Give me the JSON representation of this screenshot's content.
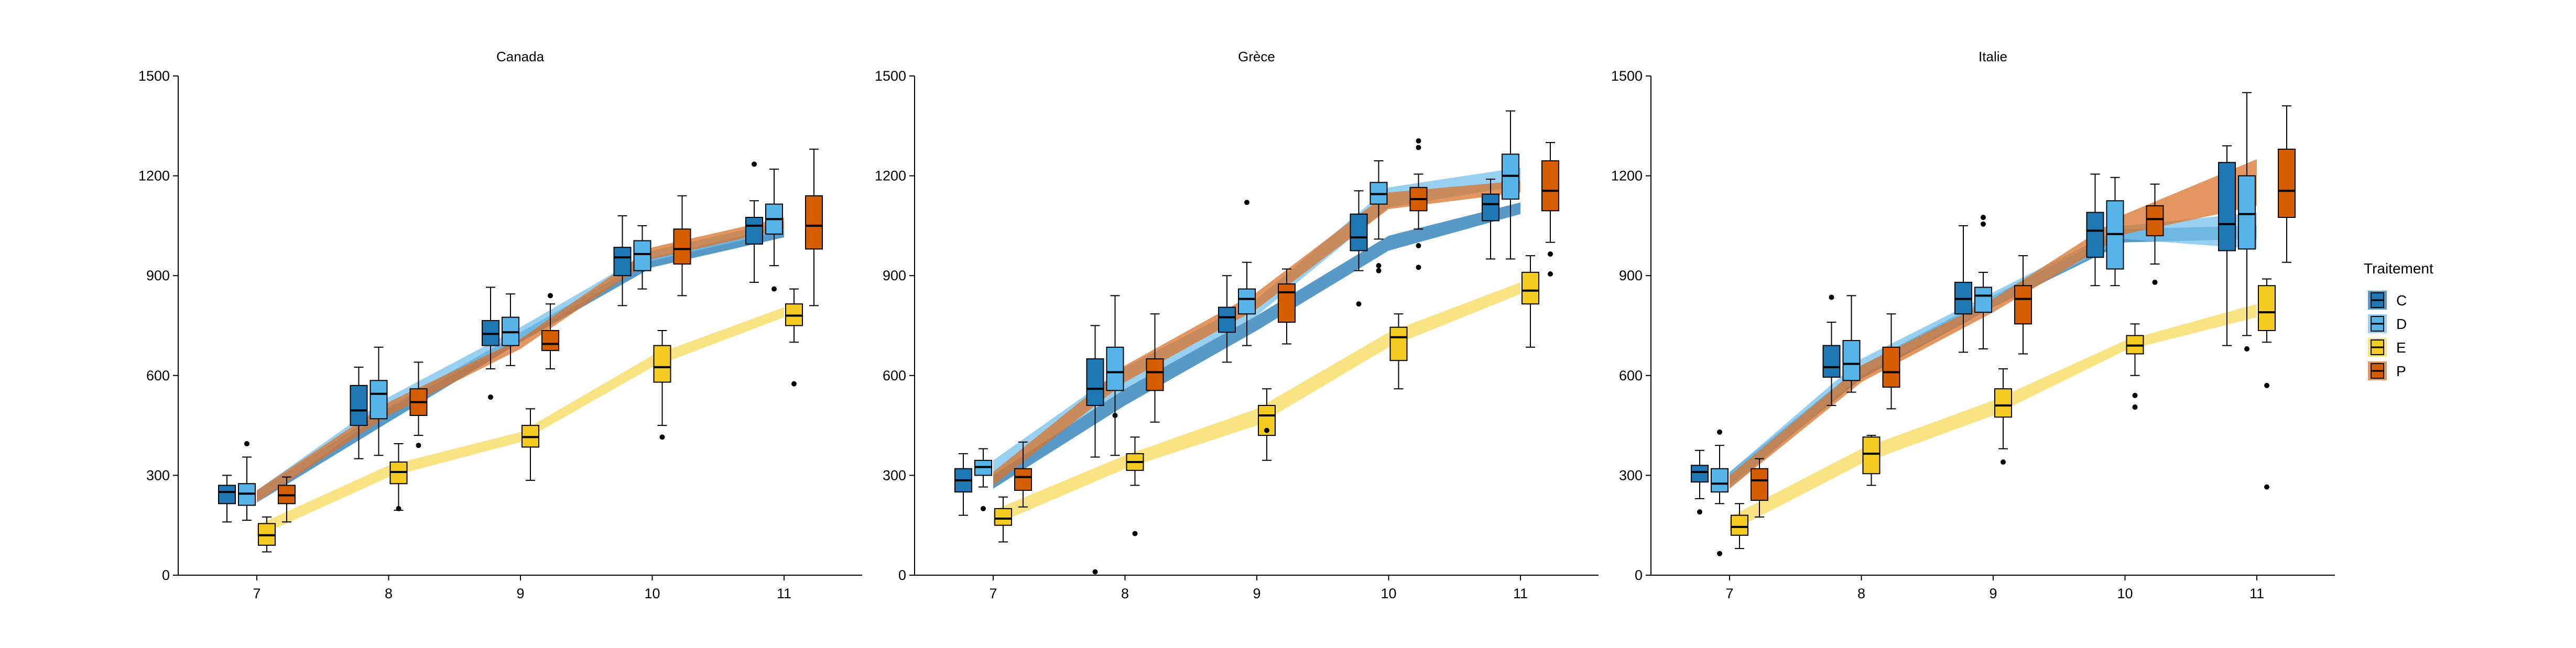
{
  "chart_data": {
    "type": "box",
    "panels": [
      "Canada",
      "Grèce",
      "Italie"
    ],
    "categories": [
      7,
      8,
      9,
      10,
      11
    ],
    "ylim": [
      0,
      1500
    ],
    "yticks": [
      0,
      300,
      600,
      900,
      1200,
      1500
    ],
    "grid": false,
    "legend": {
      "title": "Traitement",
      "placement": "right",
      "entries": [
        "C",
        "D",
        "E",
        "P"
      ]
    },
    "series_colors": {
      "C": {
        "fill": "#1F78B4",
        "ribbon": "#1F78B4"
      },
      "D": {
        "fill": "#56B4E9",
        "ribbon": "#74C0EC"
      },
      "E": {
        "fill": "#F5CB22",
        "ribbon": "#F7D95A"
      },
      "P": {
        "fill": "#D55E00",
        "ribbon": "#D9732A"
      }
    },
    "series_order": [
      "C",
      "D",
      "E",
      "P"
    ],
    "data": {
      "Canada": {
        "C": [
          {
            "x": 7,
            "min": 160,
            "q1": 215,
            "median": 250,
            "q3": 270,
            "max": 300,
            "outliers": []
          },
          {
            "x": 8,
            "min": 350,
            "q1": 450,
            "median": 495,
            "q3": 570,
            "max": 625,
            "outliers": []
          },
          {
            "x": 9,
            "min": 620,
            "q1": 690,
            "median": 725,
            "q3": 765,
            "max": 865,
            "outliers": [
              535
            ]
          },
          {
            "x": 10,
            "min": 810,
            "q1": 900,
            "median": 955,
            "q3": 985,
            "max": 1080,
            "outliers": []
          },
          {
            "x": 11,
            "min": 880,
            "q1": 995,
            "median": 1050,
            "q3": 1075,
            "max": 1125,
            "outliers": [
              1235
            ]
          }
        ],
        "D": [
          {
            "x": 7,
            "min": 165,
            "q1": 210,
            "median": 245,
            "q3": 275,
            "max": 355,
            "outliers": [
              395
            ]
          },
          {
            "x": 8,
            "min": 360,
            "q1": 470,
            "median": 545,
            "q3": 585,
            "max": 685,
            "outliers": []
          },
          {
            "x": 9,
            "min": 630,
            "q1": 690,
            "median": 730,
            "q3": 775,
            "max": 845,
            "outliers": []
          },
          {
            "x": 10,
            "min": 860,
            "q1": 915,
            "median": 965,
            "q3": 1005,
            "max": 1050,
            "outliers": []
          },
          {
            "x": 11,
            "min": 930,
            "q1": 1025,
            "median": 1070,
            "q3": 1115,
            "max": 1220,
            "outliers": [
              860
            ]
          }
        ],
        "E": [
          {
            "x": 7,
            "min": 70,
            "q1": 90,
            "median": 120,
            "q3": 155,
            "max": 175,
            "outliers": []
          },
          {
            "x": 8,
            "min": 195,
            "q1": 275,
            "median": 310,
            "q3": 340,
            "max": 395,
            "outliers": [
              200
            ]
          },
          {
            "x": 9,
            "min": 285,
            "q1": 385,
            "median": 415,
            "q3": 450,
            "max": 500,
            "outliers": []
          },
          {
            "x": 10,
            "min": 450,
            "q1": 580,
            "median": 625,
            "q3": 690,
            "max": 735,
            "outliers": [
              415
            ]
          },
          {
            "x": 11,
            "min": 700,
            "q1": 750,
            "median": 780,
            "q3": 815,
            "max": 860,
            "outliers": [
              575
            ]
          }
        ],
        "P": [
          {
            "x": 7,
            "min": 160,
            "q1": 215,
            "median": 240,
            "q3": 270,
            "max": 295,
            "outliers": []
          },
          {
            "x": 8,
            "min": 420,
            "q1": 480,
            "median": 520,
            "q3": 560,
            "max": 640,
            "outliers": [
              390
            ]
          },
          {
            "x": 9,
            "min": 620,
            "q1": 675,
            "median": 695,
            "q3": 735,
            "max": 815,
            "outliers": [
              840
            ]
          },
          {
            "x": 10,
            "min": 840,
            "q1": 935,
            "median": 980,
            "q3": 1040,
            "max": 1140,
            "outliers": []
          },
          {
            "x": 11,
            "min": 810,
            "q1": 980,
            "median": 1050,
            "q3": 1140,
            "max": 1280,
            "outliers": []
          }
        ]
      },
      "Grèce": {
        "C": [
          {
            "x": 7,
            "min": 180,
            "q1": 250,
            "median": 285,
            "q3": 320,
            "max": 365,
            "outliers": []
          },
          {
            "x": 8,
            "min": 355,
            "q1": 510,
            "median": 560,
            "q3": 650,
            "max": 750,
            "outliers": [
              10
            ]
          },
          {
            "x": 9,
            "min": 640,
            "q1": 730,
            "median": 775,
            "q3": 805,
            "max": 900,
            "outliers": []
          },
          {
            "x": 10,
            "min": 915,
            "q1": 975,
            "median": 1015,
            "q3": 1085,
            "max": 1155,
            "outliers": [
              815
            ]
          },
          {
            "x": 11,
            "min": 950,
            "q1": 1065,
            "median": 1115,
            "q3": 1145,
            "max": 1190,
            "outliers": []
          }
        ],
        "D": [
          {
            "x": 7,
            "min": 265,
            "q1": 300,
            "median": 325,
            "q3": 345,
            "max": 380,
            "outliers": [
              200
            ]
          },
          {
            "x": 8,
            "min": 360,
            "q1": 555,
            "median": 610,
            "q3": 685,
            "max": 840,
            "outliers": [
              480
            ]
          },
          {
            "x": 9,
            "min": 690,
            "q1": 785,
            "median": 830,
            "q3": 860,
            "max": 940,
            "outliers": [
              1120
            ]
          },
          {
            "x": 10,
            "min": 1010,
            "q1": 1115,
            "median": 1145,
            "q3": 1180,
            "max": 1245,
            "outliers": [
              930,
              915
            ]
          },
          {
            "x": 11,
            "min": 950,
            "q1": 1130,
            "median": 1200,
            "q3": 1265,
            "max": 1395,
            "outliers": []
          }
        ],
        "E": [
          {
            "x": 7,
            "min": 100,
            "q1": 150,
            "median": 170,
            "q3": 200,
            "max": 235,
            "outliers": []
          },
          {
            "x": 8,
            "min": 270,
            "q1": 315,
            "median": 340,
            "q3": 365,
            "max": 415,
            "outliers": [
              125
            ]
          },
          {
            "x": 9,
            "min": 345,
            "q1": 420,
            "median": 480,
            "q3": 510,
            "max": 560,
            "outliers": [
              435
            ]
          },
          {
            "x": 10,
            "min": 560,
            "q1": 645,
            "median": 715,
            "q3": 745,
            "max": 785,
            "outliers": []
          },
          {
            "x": 11,
            "min": 685,
            "q1": 815,
            "median": 855,
            "q3": 910,
            "max": 960,
            "outliers": []
          }
        ],
        "P": [
          {
            "x": 7,
            "min": 205,
            "q1": 255,
            "median": 295,
            "q3": 320,
            "max": 400,
            "outliers": []
          },
          {
            "x": 8,
            "min": 460,
            "q1": 555,
            "median": 610,
            "q3": 650,
            "max": 785,
            "outliers": []
          },
          {
            "x": 9,
            "min": 695,
            "q1": 760,
            "median": 850,
            "q3": 875,
            "max": 920,
            "outliers": []
          },
          {
            "x": 10,
            "min": 1040,
            "q1": 1095,
            "median": 1130,
            "q3": 1165,
            "max": 1205,
            "outliers": [
              1305,
              1285,
              990,
              925
            ]
          },
          {
            "x": 11,
            "min": 1000,
            "q1": 1095,
            "median": 1155,
            "q3": 1245,
            "max": 1300,
            "outliers": [
              965,
              905
            ]
          }
        ]
      },
      "Italie": {
        "C": [
          {
            "x": 7,
            "min": 230,
            "q1": 280,
            "median": 310,
            "q3": 330,
            "max": 375,
            "outliers": [
              190
            ]
          },
          {
            "x": 8,
            "min": 510,
            "q1": 595,
            "median": 625,
            "q3": 690,
            "max": 760,
            "outliers": [
              835
            ]
          },
          {
            "x": 9,
            "min": 670,
            "q1": 785,
            "median": 830,
            "q3": 880,
            "max": 1050,
            "outliers": []
          },
          {
            "x": 10,
            "min": 870,
            "q1": 955,
            "median": 1035,
            "q3": 1090,
            "max": 1205,
            "outliers": []
          },
          {
            "x": 11,
            "min": 690,
            "q1": 975,
            "median": 1055,
            "q3": 1240,
            "max": 1290,
            "outliers": []
          }
        ],
        "D": [
          {
            "x": 7,
            "min": 215,
            "q1": 250,
            "median": 275,
            "q3": 320,
            "max": 390,
            "outliers": [
              430,
              65
            ]
          },
          {
            "x": 8,
            "min": 550,
            "q1": 585,
            "median": 635,
            "q3": 705,
            "max": 840,
            "outliers": []
          },
          {
            "x": 9,
            "min": 680,
            "q1": 790,
            "median": 840,
            "q3": 865,
            "max": 910,
            "outliers": [
              1075,
              1055
            ]
          },
          {
            "x": 10,
            "min": 870,
            "q1": 920,
            "median": 1025,
            "q3": 1125,
            "max": 1195,
            "outliers": []
          },
          {
            "x": 11,
            "min": 720,
            "q1": 980,
            "median": 1085,
            "q3": 1200,
            "max": 1450,
            "outliers": [
              680
            ]
          }
        ],
        "E": [
          {
            "x": 7,
            "min": 80,
            "q1": 120,
            "median": 145,
            "q3": 180,
            "max": 215,
            "outliers": []
          },
          {
            "x": 8,
            "min": 270,
            "q1": 305,
            "median": 365,
            "q3": 415,
            "max": 420,
            "outliers": []
          },
          {
            "x": 9,
            "min": 380,
            "q1": 475,
            "median": 510,
            "q3": 560,
            "max": 620,
            "outliers": [
              340
            ]
          },
          {
            "x": 10,
            "min": 600,
            "q1": 665,
            "median": 690,
            "q3": 720,
            "max": 755,
            "outliers": [
              540,
              505
            ]
          },
          {
            "x": 11,
            "min": 700,
            "q1": 735,
            "median": 790,
            "q3": 870,
            "max": 890,
            "outliers": [
              570,
              265
            ]
          }
        ],
        "P": [
          {
            "x": 7,
            "min": 175,
            "q1": 225,
            "median": 285,
            "q3": 320,
            "max": 350,
            "outliers": []
          },
          {
            "x": 8,
            "min": 500,
            "q1": 565,
            "median": 610,
            "q3": 685,
            "max": 785,
            "outliers": []
          },
          {
            "x": 9,
            "min": 665,
            "q1": 755,
            "median": 830,
            "q3": 870,
            "max": 960,
            "outliers": []
          },
          {
            "x": 10,
            "min": 935,
            "q1": 1020,
            "median": 1070,
            "q3": 1110,
            "max": 1175,
            "outliers": [
              880
            ]
          },
          {
            "x": 11,
            "min": 940,
            "q1": 1075,
            "median": 1155,
            "q3": 1280,
            "max": 1410,
            "outliers": []
          }
        ]
      }
    },
    "ribbons": {
      "Canada": {
        "C": {
          "low": [
            218,
            460,
            700,
            925,
            1015
          ],
          "high": [
            252,
            505,
            730,
            955,
            1050
          ]
        },
        "D": {
          "low": [
            218,
            500,
            710,
            945,
            1035
          ],
          "high": [
            255,
            535,
            745,
            975,
            1065
          ]
        },
        "E": {
          "low": [
            115,
            295,
            400,
            625,
            775
          ],
          "high": [
            150,
            330,
            430,
            660,
            805
          ]
        },
        "P": {
          "low": [
            220,
            480,
            680,
            950,
            1040
          ],
          "high": [
            255,
            520,
            710,
            985,
            1075
          ]
        }
      },
      "Grèce": {
        "C": {
          "low": [
            260,
            510,
            735,
            975,
            1085
          ],
          "high": [
            300,
            560,
            780,
            1020,
            1120
          ]
        },
        "D": {
          "low": [
            300,
            560,
            780,
            1105,
            1170
          ],
          "high": [
            345,
            625,
            830,
            1165,
            1225
          ]
        },
        "E": {
          "low": [
            150,
            320,
            450,
            685,
            845
          ],
          "high": [
            195,
            360,
            500,
            730,
            880
          ]
        },
        "P": {
          "low": [
            270,
            580,
            800,
            1100,
            1150
          ],
          "high": [
            310,
            630,
            850,
            1150,
            1185
          ]
        }
      },
      "Italie": {
        "C": {
          "low": [
            270,
            590,
            805,
            1000,
            1010
          ],
          "high": [
            310,
            630,
            840,
            1040,
            1050
          ]
        },
        "D": {
          "low": [
            260,
            600,
            805,
            1010,
            980
          ],
          "high": [
            310,
            650,
            850,
            1050,
            1090
          ]
        },
        "E": {
          "low": [
            130,
            335,
            480,
            675,
            775
          ],
          "high": [
            175,
            380,
            525,
            705,
            815
          ]
        },
        "P": {
          "low": [
            260,
            580,
            790,
            1025,
            1110
          ],
          "high": [
            300,
            630,
            830,
            1085,
            1250
          ]
        }
      }
    }
  }
}
